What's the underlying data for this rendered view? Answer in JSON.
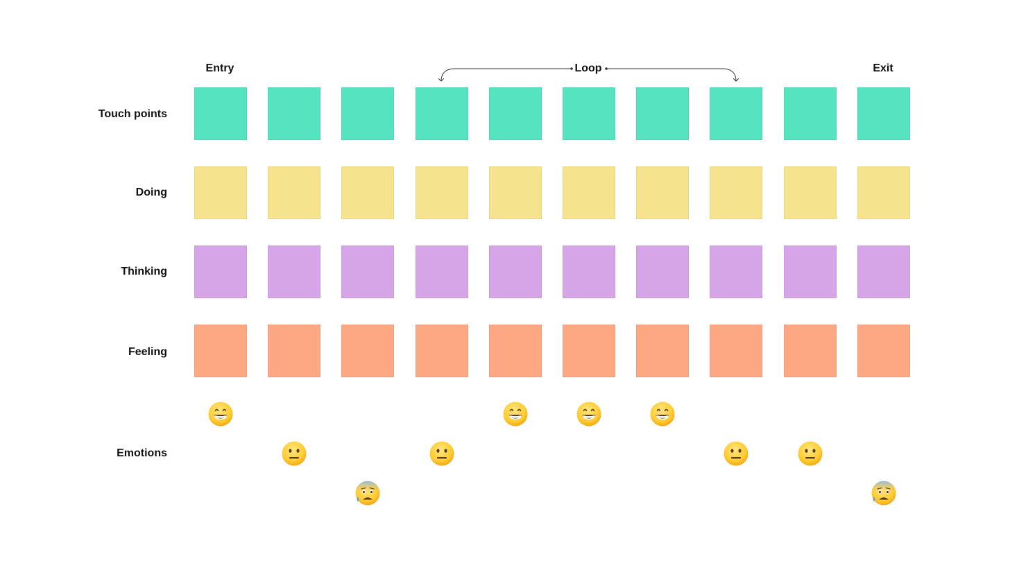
{
  "phases": {
    "entry": "Entry",
    "loop": "Loop",
    "exit": "Exit"
  },
  "rows": [
    {
      "key": "touch",
      "label": "Touch points",
      "color": "#56E3C0"
    },
    {
      "key": "doing",
      "label": "Doing",
      "color": "#F5E48D"
    },
    {
      "key": "thinking",
      "label": "Thinking",
      "color": "#D6A5E8"
    },
    {
      "key": "feeling",
      "label": "Feeling",
      "color": "#FDA882"
    }
  ],
  "step_count": 10,
  "emotions": {
    "label": "Emotions",
    "levels": [
      "grinning-face",
      "neutral-face",
      "anxious-face-with-sweat"
    ],
    "per_step": [
      "grinning-face",
      "neutral-face",
      "anxious-face-with-sweat",
      "neutral-face",
      "grinning-face",
      "grinning-face",
      "grinning-face",
      "neutral-face",
      "neutral-face",
      "anxious-face-with-sweat"
    ]
  },
  "loop_range": {
    "from_step": 4,
    "to_step": 8
  }
}
